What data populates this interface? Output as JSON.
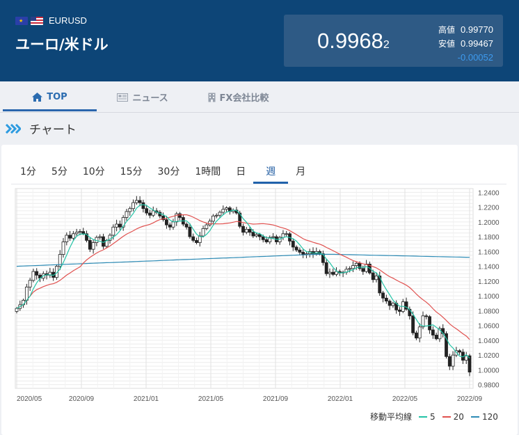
{
  "header": {
    "pair_code": "EURUSD",
    "pair_name": "ユーロ/米ドル",
    "price_main": "0.9968",
    "price_sub": "2",
    "high_label": "高値",
    "high_value": "0.99770",
    "low_label": "安値",
    "low_value": "0.99467",
    "change": "-0.00052",
    "flags": [
      "eu-flag-icon",
      "us-flag-icon"
    ]
  },
  "tabs": [
    {
      "label": "TOP",
      "icon": "home-icon",
      "active": true
    },
    {
      "label": "ニュース",
      "icon": "newspaper-icon",
      "active": false
    },
    {
      "label": "FX会社比較",
      "icon": "building-icon",
      "active": false
    }
  ],
  "section": {
    "title": "チャート",
    "icon": "double-chevron-right-icon"
  },
  "periods": [
    "1分",
    "5分",
    "10分",
    "15分",
    "30分",
    "1時間",
    "日",
    "週",
    "月"
  ],
  "active_period": "週",
  "legend": {
    "label": "移動平均線",
    "items": [
      "5",
      "20",
      "120"
    ]
  },
  "colors": {
    "header_bg": "#0d4577",
    "price_box": "#2e5a85",
    "accent": "#2162ab",
    "ma5": "#22c3a6",
    "ma20": "#e0504e",
    "ma120": "#2d8bb5",
    "change": "#3d9bf0"
  },
  "chart_data": {
    "type": "candlestick",
    "x_tick_labels": [
      "2020/05",
      "2020/09",
      "2021/01",
      "2021/05",
      "2021/09",
      "2022/01",
      "2022/05",
      "2022/09"
    ],
    "y_tick_labels": [
      "1.2400",
      "1.2200",
      "1.2000",
      "1.1800",
      "1.1600",
      "1.1400",
      "1.1200",
      "1.1000",
      "1.0800",
      "1.0600",
      "1.0400",
      "1.0200",
      "1.0000",
      "0.9800"
    ],
    "ylim": [
      0.975,
      1.245
    ],
    "x_start": "2020/05",
    "close_series": [
      1.083,
      1.088,
      1.094,
      1.112,
      1.121,
      1.133,
      1.128,
      1.124,
      1.13,
      1.128,
      1.132,
      1.125,
      1.14,
      1.156,
      1.173,
      1.182,
      1.178,
      1.184,
      1.186,
      1.187,
      1.184,
      1.175,
      1.163,
      1.172,
      1.179,
      1.18,
      1.167,
      1.175,
      1.182,
      1.193,
      1.197,
      1.193,
      1.206,
      1.214,
      1.218,
      1.226,
      1.229,
      1.226,
      1.218,
      1.212,
      1.209,
      1.215,
      1.213,
      1.208,
      1.203,
      1.196,
      1.193,
      1.2,
      1.211,
      1.206,
      1.197,
      1.193,
      1.18,
      1.175,
      1.172,
      1.181,
      1.191,
      1.196,
      1.201,
      1.208,
      1.209,
      1.213,
      1.217,
      1.219,
      1.214,
      1.216,
      1.212,
      1.194,
      1.186,
      1.19,
      1.186,
      1.181,
      1.183,
      1.18,
      1.176,
      1.173,
      1.179,
      1.18,
      1.173,
      1.179,
      1.184,
      1.184,
      1.174,
      1.166,
      1.162,
      1.159,
      1.156,
      1.157,
      1.16,
      1.157,
      1.16,
      1.157,
      1.145,
      1.13,
      1.132,
      1.129,
      1.133,
      1.131,
      1.132,
      1.136,
      1.137,
      1.141,
      1.144,
      1.137,
      1.133,
      1.143,
      1.131,
      1.122,
      1.127,
      1.104,
      1.097,
      1.093,
      1.087,
      1.09,
      1.081,
      1.079,
      1.092,
      1.082,
      1.073,
      1.05,
      1.043,
      1.058,
      1.073,
      1.072,
      1.054,
      1.047,
      1.042,
      1.056,
      1.049,
      1.018,
      1.005,
      1.02,
      1.026,
      1.024,
      1.013,
      1.019,
      0.997
    ],
    "moving_averages": [
      "5",
      "20",
      "120"
    ]
  }
}
